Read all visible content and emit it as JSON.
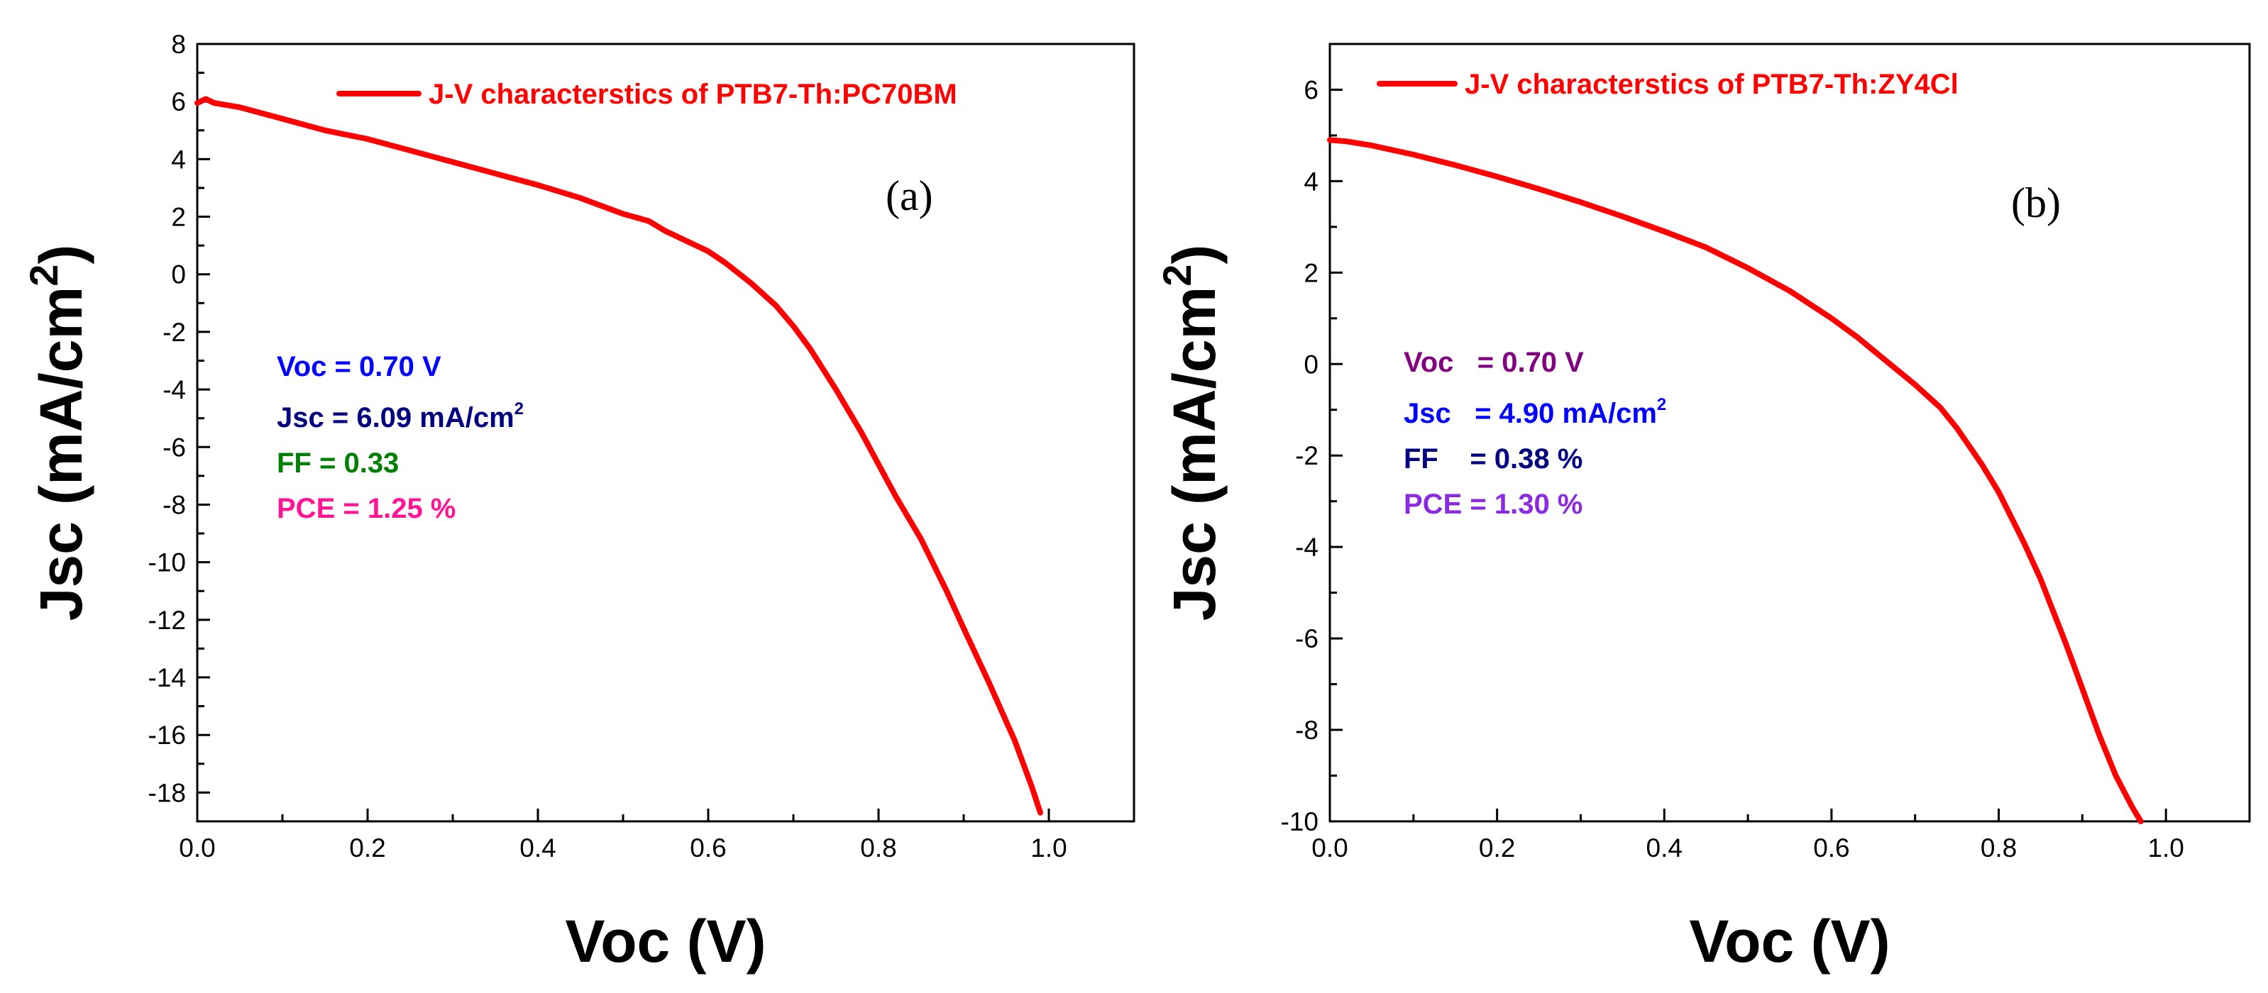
{
  "chart_data": [
    {
      "type": "line",
      "panel_label": "(a)",
      "xlabel": "Voc (V)",
      "ylabel": {
        "main": "Jsc (mA/cm",
        "sup": "2",
        "close": ")"
      },
      "xlim": [
        0.0,
        1.1
      ],
      "ylim": [
        -19,
        8
      ],
      "x_ticks": [
        0.0,
        0.2,
        0.4,
        0.6,
        0.8,
        1.0
      ],
      "x_tick_labels": [
        "0.0",
        "0.2",
        "0.4",
        "0.6",
        "0.8",
        "1.0"
      ],
      "y_ticks": [
        8,
        6,
        4,
        2,
        0,
        -2,
        -4,
        -6,
        -8,
        -10,
        -12,
        -14,
        -16,
        -18
      ],
      "y_tick_labels": [
        "8",
        "6",
        "4",
        "2",
        "0",
        "-2",
        "-4",
        "-6",
        "-8",
        "-10",
        "-12",
        "-14",
        "-16",
        "-18"
      ],
      "legend_position": "top-right",
      "series": [
        {
          "name": "J-V characterstics of PTB7-Th:PC70BM",
          "color": "#ff0000",
          "x": [
            0.0,
            0.01,
            0.02,
            0.05,
            0.1,
            0.15,
            0.2,
            0.25,
            0.3,
            0.35,
            0.4,
            0.45,
            0.5,
            0.53,
            0.55,
            0.6,
            0.62,
            0.65,
            0.68,
            0.7,
            0.72,
            0.75,
            0.78,
            0.8,
            0.82,
            0.85,
            0.88,
            0.9,
            0.93,
            0.96,
            0.98,
            0.99
          ],
          "y": [
            5.95,
            6.09,
            5.95,
            5.8,
            5.4,
            5.0,
            4.7,
            4.3,
            3.9,
            3.5,
            3.1,
            2.65,
            2.1,
            1.85,
            1.5,
            0.8,
            0.4,
            -0.3,
            -1.1,
            -1.8,
            -2.6,
            -4.0,
            -5.5,
            -6.6,
            -7.7,
            -9.2,
            -11.0,
            -12.3,
            -14.2,
            -16.2,
            -17.8,
            -18.7
          ]
        }
      ],
      "annotations": [
        {
          "label": "Voc = 0.70 V",
          "color": "#0000ff"
        },
        {
          "label": "Jsc = 6.09 mA/cm",
          "sup": "2",
          "color": "#000080"
        },
        {
          "label": "FF = 0.33",
          "color": "#008000"
        },
        {
          "label": "PCE = 1.25 %",
          "color": "#ff1493"
        }
      ]
    },
    {
      "type": "line",
      "panel_label": "(b)",
      "xlabel": "Voc (V)",
      "ylabel": {
        "main": "Jsc (mA/cm",
        "sup": "2",
        "close": ")"
      },
      "xlim": [
        0.0,
        1.1
      ],
      "ylim": [
        -10,
        7
      ],
      "x_ticks": [
        0.0,
        0.2,
        0.4,
        0.6,
        0.8,
        1.0
      ],
      "x_tick_labels": [
        "0.0",
        "0.2",
        "0.4",
        "0.6",
        "0.8",
        "1.0"
      ],
      "y_ticks": [
        6,
        4,
        2,
        0,
        -2,
        -4,
        -6,
        -8,
        -10
      ],
      "y_tick_labels": [
        "6",
        "4",
        "2",
        "0",
        "-2",
        "-4",
        "-6",
        "-8",
        "-10"
      ],
      "legend_position": "top-right",
      "series": [
        {
          "name": "J-V characterstics of PTB7-Th:ZY4Cl",
          "color": "#ff0000",
          "x": [
            0.0,
            0.02,
            0.05,
            0.1,
            0.15,
            0.2,
            0.25,
            0.3,
            0.35,
            0.4,
            0.45,
            0.5,
            0.55,
            0.6,
            0.63,
            0.65,
            0.68,
            0.7,
            0.73,
            0.75,
            0.78,
            0.8,
            0.83,
            0.85,
            0.88,
            0.9,
            0.92,
            0.94,
            0.96,
            0.97
          ],
          "y": [
            4.9,
            4.87,
            4.78,
            4.58,
            4.35,
            4.1,
            3.83,
            3.54,
            3.23,
            2.9,
            2.55,
            2.1,
            1.6,
            1.0,
            0.6,
            0.3,
            -0.15,
            -0.45,
            -0.95,
            -1.4,
            -2.2,
            -2.8,
            -3.9,
            -4.7,
            -6.1,
            -7.1,
            -8.1,
            -9.0,
            -9.7,
            -10.0
          ]
        }
      ],
      "annotations": [
        {
          "label": "Voc   = 0.70 V",
          "color": "#800080"
        },
        {
          "label": "Jsc   = 4.90 mA/cm",
          "sup": "2",
          "color": "#0000ff"
        },
        {
          "label": "FF    = 0.38 %",
          "color": "#000080"
        },
        {
          "label": "PCE = 1.30 %",
          "color": "#8a2be2"
        }
      ]
    }
  ]
}
